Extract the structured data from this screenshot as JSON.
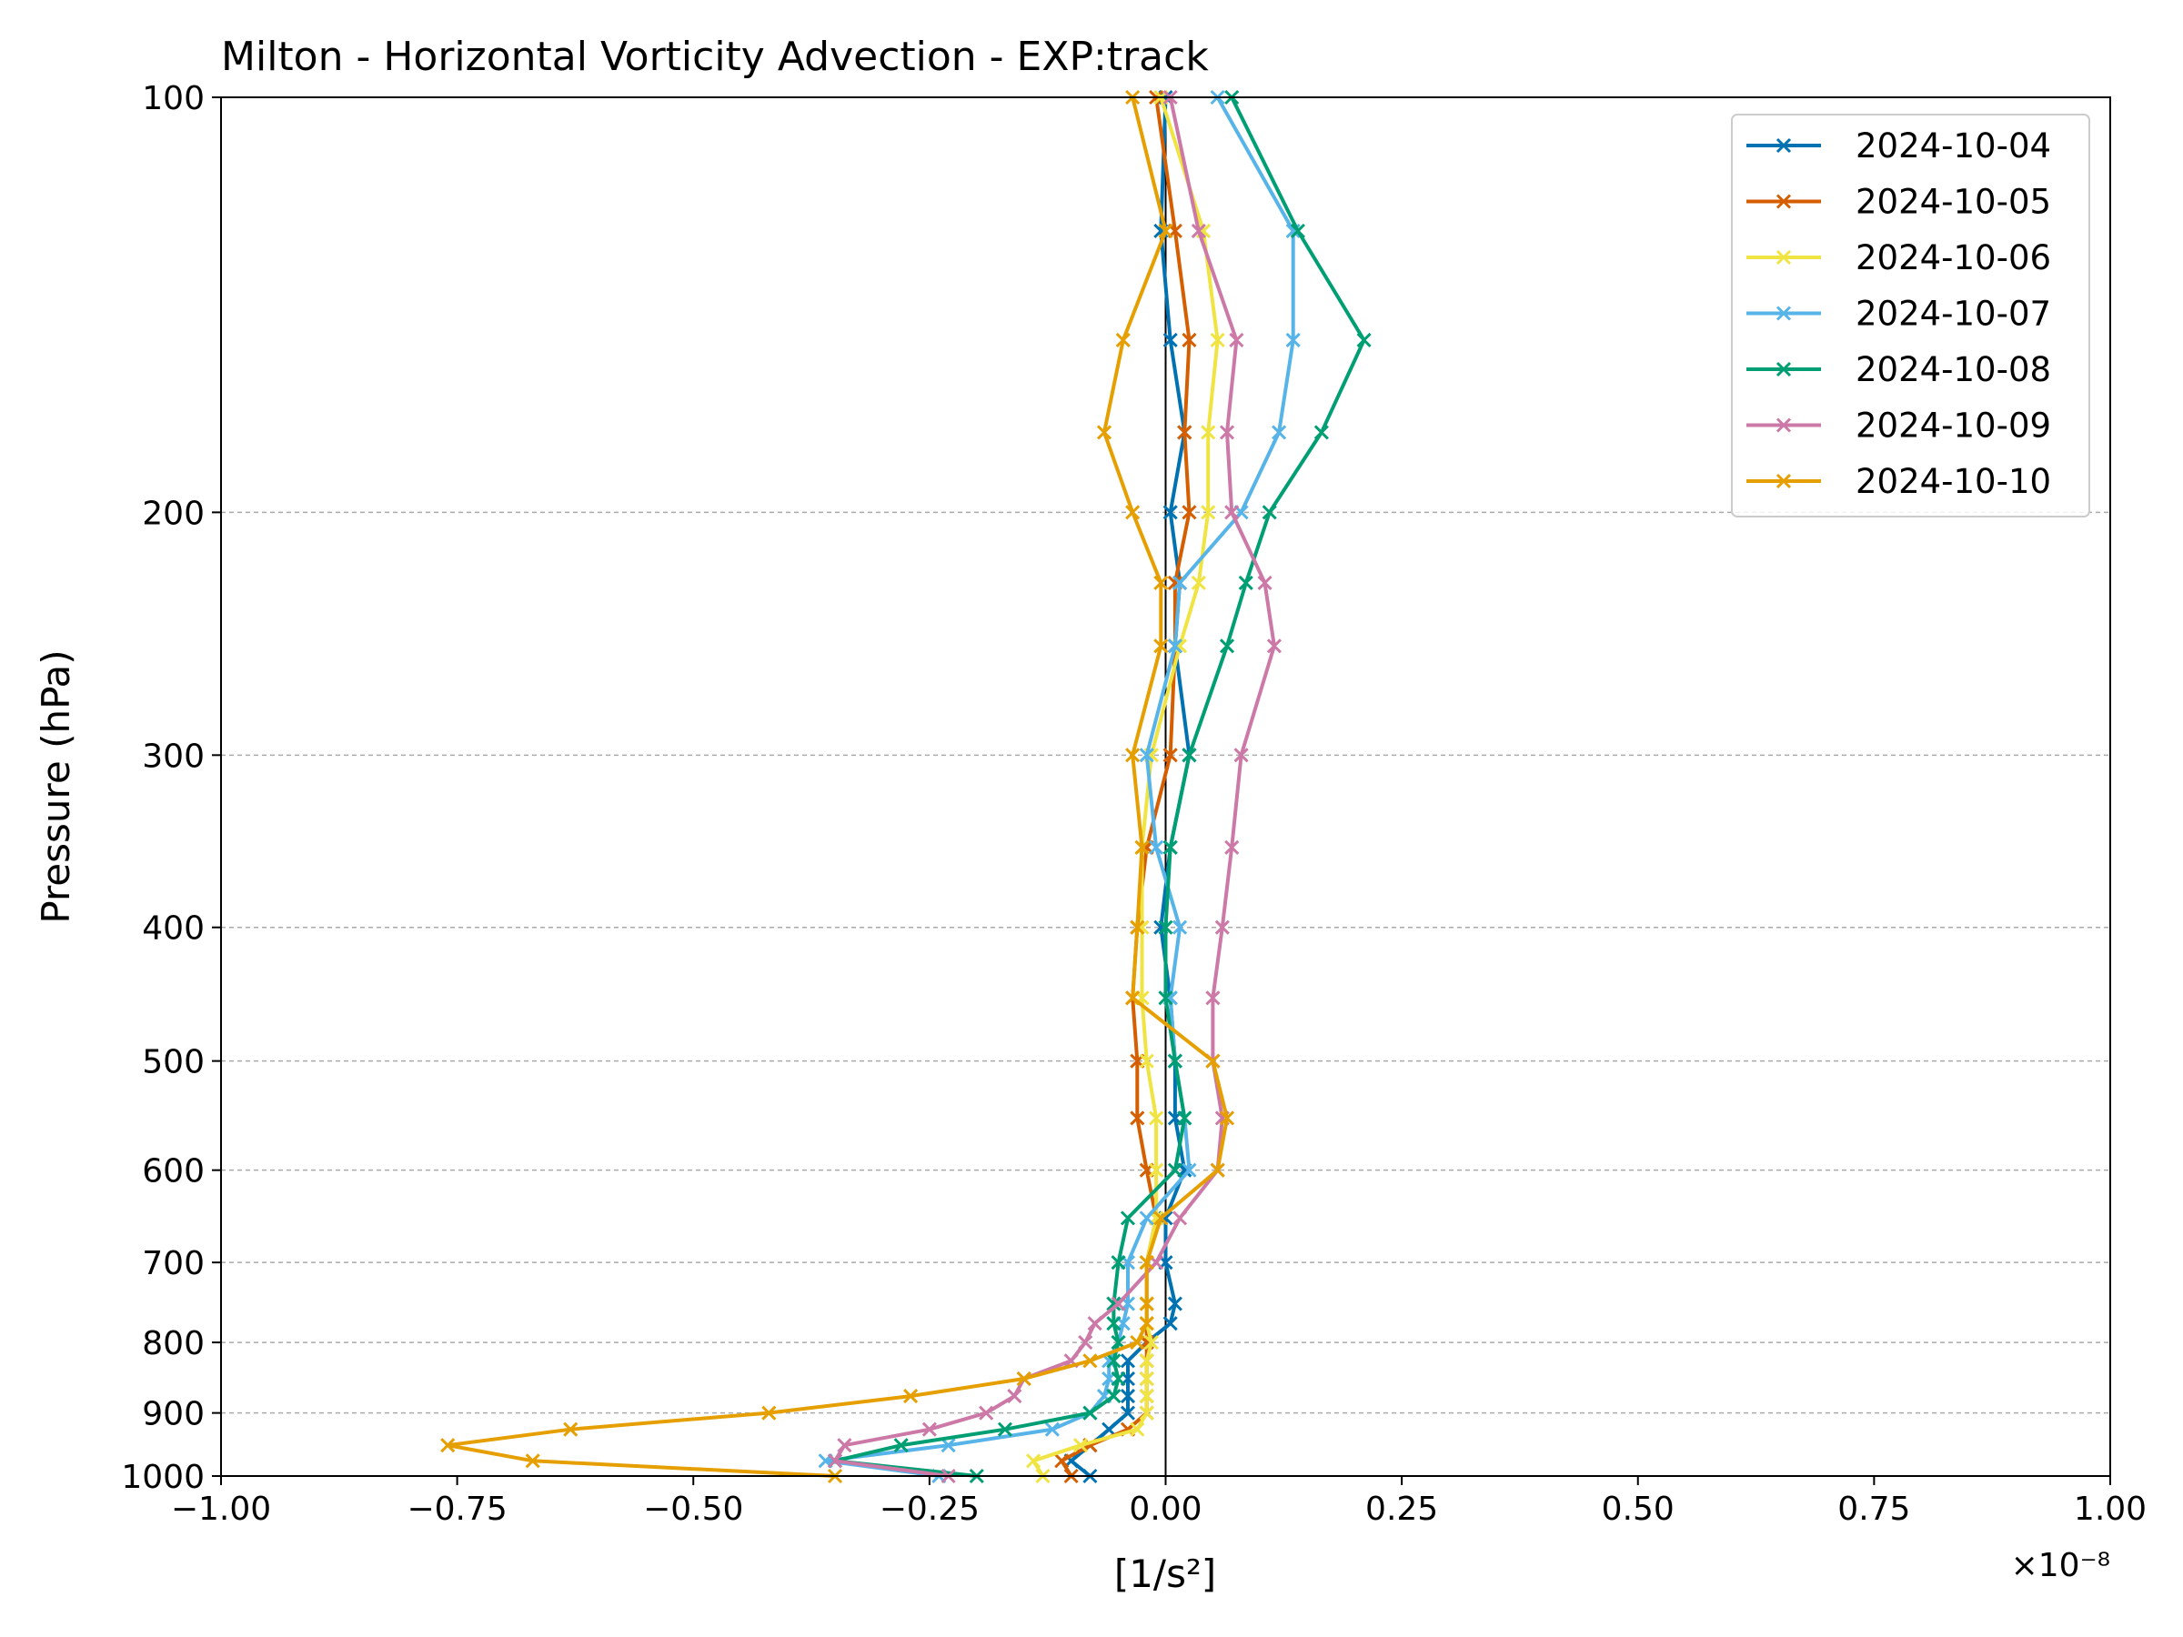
{
  "chart_data": {
    "type": "line",
    "title": "Milton - Horizontal Vorticity Advection - EXP:track",
    "xlabel": "[1/s²]",
    "ylabel": "Pressure (hPa)",
    "x_offset_label": "×10⁻⁸",
    "xlim": [
      -1.0,
      1.0
    ],
    "ylim": [
      1000,
      100
    ],
    "y_scale": "log",
    "x_ticks": [
      -1.0,
      -0.75,
      -0.5,
      -0.25,
      0.0,
      0.25,
      0.5,
      0.75,
      1.0
    ],
    "x_tick_labels": [
      "−1.00",
      "−0.75",
      "−0.50",
      "−0.25",
      "0.00",
      "0.25",
      "0.50",
      "0.75",
      "1.00"
    ],
    "y_ticks": [
      100,
      200,
      300,
      400,
      500,
      600,
      700,
      800,
      900,
      1000
    ],
    "y_tick_labels": [
      "100",
      "200",
      "300",
      "400",
      "500",
      "600",
      "700",
      "800",
      "900",
      "1000"
    ],
    "grid": "horizontal dashed at y ticks",
    "zero_line": true,
    "legend_position": "upper right",
    "pressure_levels": [
      100,
      125,
      150,
      175,
      200,
      225,
      250,
      300,
      350,
      400,
      450,
      500,
      550,
      600,
      650,
      700,
      750,
      775,
      800,
      825,
      850,
      875,
      900,
      925,
      950,
      975,
      1000
    ],
    "series": [
      {
        "name": "2024-10-04",
        "color": "#0072b2",
        "values": [
          0.0,
          -0.005,
          0.005,
          0.02,
          0.005,
          0.015,
          0.01,
          0.025,
          0.005,
          -0.005,
          0.005,
          0.01,
          0.01,
          0.02,
          0.0,
          0.0,
          0.01,
          0.005,
          -0.02,
          -0.04,
          -0.04,
          -0.04,
          -0.04,
          -0.06,
          -0.08,
          -0.1,
          -0.08
        ]
      },
      {
        "name": "2024-10-05",
        "color": "#d55e00",
        "values": [
          -0.01,
          0.01,
          0.025,
          0.02,
          0.025,
          0.01,
          0.01,
          0.005,
          -0.02,
          -0.03,
          -0.035,
          -0.03,
          -0.03,
          -0.02,
          -0.01,
          -0.02,
          -0.02,
          -0.02,
          -0.02,
          -0.02,
          -0.02,
          -0.02,
          -0.02,
          -0.04,
          -0.08,
          -0.11,
          -0.1
        ]
      },
      {
        "name": "2024-10-06",
        "color": "#f0e442",
        "values": [
          -0.005,
          0.04,
          0.055,
          0.045,
          0.045,
          0.035,
          0.015,
          -0.015,
          -0.025,
          -0.025,
          -0.025,
          -0.02,
          -0.01,
          -0.01,
          -0.01,
          -0.02,
          -0.02,
          -0.02,
          -0.015,
          -0.02,
          -0.02,
          -0.02,
          -0.02,
          -0.03,
          -0.09,
          -0.14,
          -0.13
        ]
      },
      {
        "name": "2024-10-07",
        "color": "#56b4e9",
        "values": [
          0.055,
          0.135,
          0.135,
          0.12,
          0.08,
          0.015,
          0.01,
          -0.02,
          -0.01,
          0.015,
          0.005,
          0.01,
          0.02,
          0.025,
          -0.02,
          -0.04,
          -0.04,
          -0.045,
          -0.05,
          -0.06,
          -0.06,
          -0.065,
          -0.08,
          -0.12,
          -0.23,
          -0.36,
          -0.24
        ]
      },
      {
        "name": "2024-10-08",
        "color": "#009e73",
        "values": [
          0.07,
          0.14,
          0.21,
          0.165,
          0.11,
          0.085,
          0.065,
          0.025,
          0.005,
          0.0,
          0.0,
          0.01,
          0.02,
          0.01,
          -0.04,
          -0.05,
          -0.055,
          -0.055,
          -0.05,
          -0.055,
          -0.05,
          -0.055,
          -0.08,
          -0.17,
          -0.28,
          -0.35,
          -0.2
        ]
      },
      {
        "name": "2024-10-09",
        "color": "#cc79a7",
        "values": [
          0.005,
          0.035,
          0.075,
          0.065,
          0.07,
          0.105,
          0.115,
          0.08,
          0.07,
          0.06,
          0.05,
          0.05,
          0.06,
          0.055,
          0.015,
          -0.01,
          -0.05,
          -0.075,
          -0.085,
          -0.1,
          -0.15,
          -0.16,
          -0.19,
          -0.25,
          -0.34,
          -0.35,
          -0.23
        ]
      },
      {
        "name": "2024-10-10",
        "color": "#e69f00",
        "values": [
          -0.035,
          0.0,
          -0.045,
          -0.065,
          -0.035,
          -0.005,
          -0.005,
          -0.035,
          -0.025,
          -0.03,
          -0.035,
          0.05,
          0.065,
          0.055,
          -0.005,
          -0.02,
          -0.02,
          -0.02,
          -0.03,
          -0.08,
          -0.15,
          -0.27,
          -0.42,
          -0.63,
          -0.76,
          -0.67,
          -0.35
        ]
      }
    ]
  }
}
